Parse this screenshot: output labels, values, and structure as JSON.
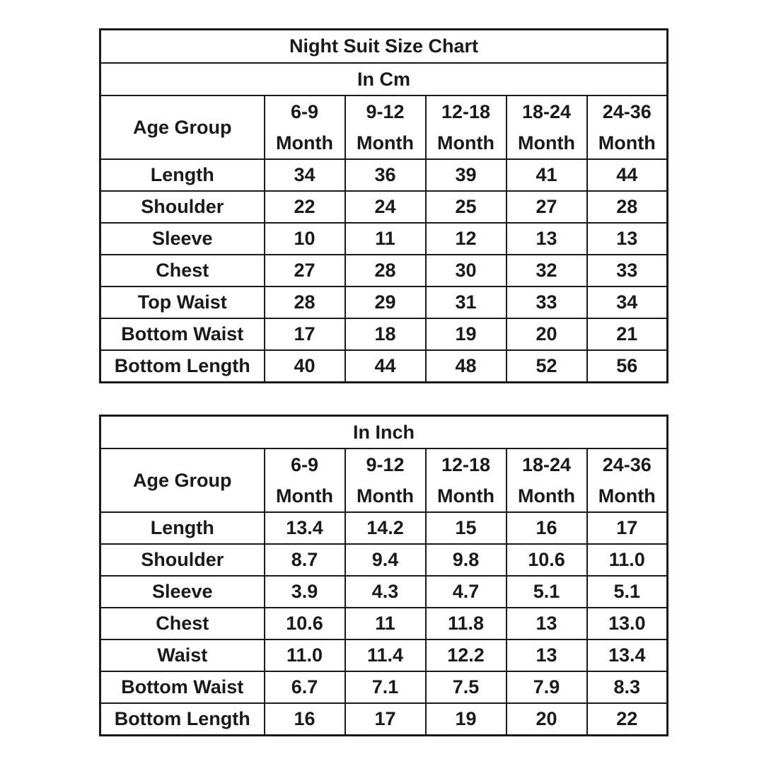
{
  "cm_table": {
    "title": "Night Suit Size Chart",
    "unit": "In Cm",
    "row_header": "Age Group",
    "columns": [
      {
        "range": "6-9",
        "unit": "Month"
      },
      {
        "range": "9-12",
        "unit": "Month"
      },
      {
        "range": "12-18",
        "unit": "Month"
      },
      {
        "range": "18-24",
        "unit": "Month"
      },
      {
        "range": "24-36",
        "unit": "Month"
      }
    ],
    "rows": [
      {
        "label": "Length",
        "values": [
          "34",
          "36",
          "39",
          "41",
          "44"
        ]
      },
      {
        "label": "Shoulder",
        "values": [
          "22",
          "24",
          "25",
          "27",
          "28"
        ]
      },
      {
        "label": "Sleeve",
        "values": [
          "10",
          "11",
          "12",
          "13",
          "13"
        ]
      },
      {
        "label": "Chest",
        "values": [
          "27",
          "28",
          "30",
          "32",
          "33"
        ]
      },
      {
        "label": "Top Waist",
        "values": [
          "28",
          "29",
          "31",
          "33",
          "34"
        ]
      },
      {
        "label": "Bottom Waist",
        "values": [
          "17",
          "18",
          "19",
          "20",
          "21"
        ]
      },
      {
        "label": "Bottom Length",
        "values": [
          "40",
          "44",
          "48",
          "52",
          "56"
        ]
      }
    ]
  },
  "inch_table": {
    "unit": "In Inch",
    "row_header": "Age Group",
    "columns": [
      {
        "range": "6-9",
        "unit": "Month"
      },
      {
        "range": "9-12",
        "unit": "Month"
      },
      {
        "range": "12-18",
        "unit": "Month"
      },
      {
        "range": "18-24",
        "unit": "Month"
      },
      {
        "range": "24-36",
        "unit": "Month"
      }
    ],
    "rows": [
      {
        "label": "Length",
        "values": [
          "13.4",
          "14.2",
          "15",
          "16",
          "17"
        ]
      },
      {
        "label": "Shoulder",
        "values": [
          "8.7",
          "9.4",
          "9.8",
          "10.6",
          "11.0"
        ]
      },
      {
        "label": "Sleeve",
        "values": [
          "3.9",
          "4.3",
          "4.7",
          "5.1",
          "5.1"
        ]
      },
      {
        "label": "Chest",
        "values": [
          "10.6",
          "11",
          "11.8",
          "13",
          "13.0"
        ]
      },
      {
        "label": "Waist",
        "values": [
          "11.0",
          "11.4",
          "12.2",
          "13",
          "13.4"
        ]
      },
      {
        "label": "Bottom Waist",
        "values": [
          "6.7",
          "7.1",
          "7.5",
          "7.9",
          "8.3"
        ]
      },
      {
        "label": "Bottom Length",
        "values": [
          "16",
          "17",
          "19",
          "20",
          "22"
        ]
      }
    ]
  }
}
